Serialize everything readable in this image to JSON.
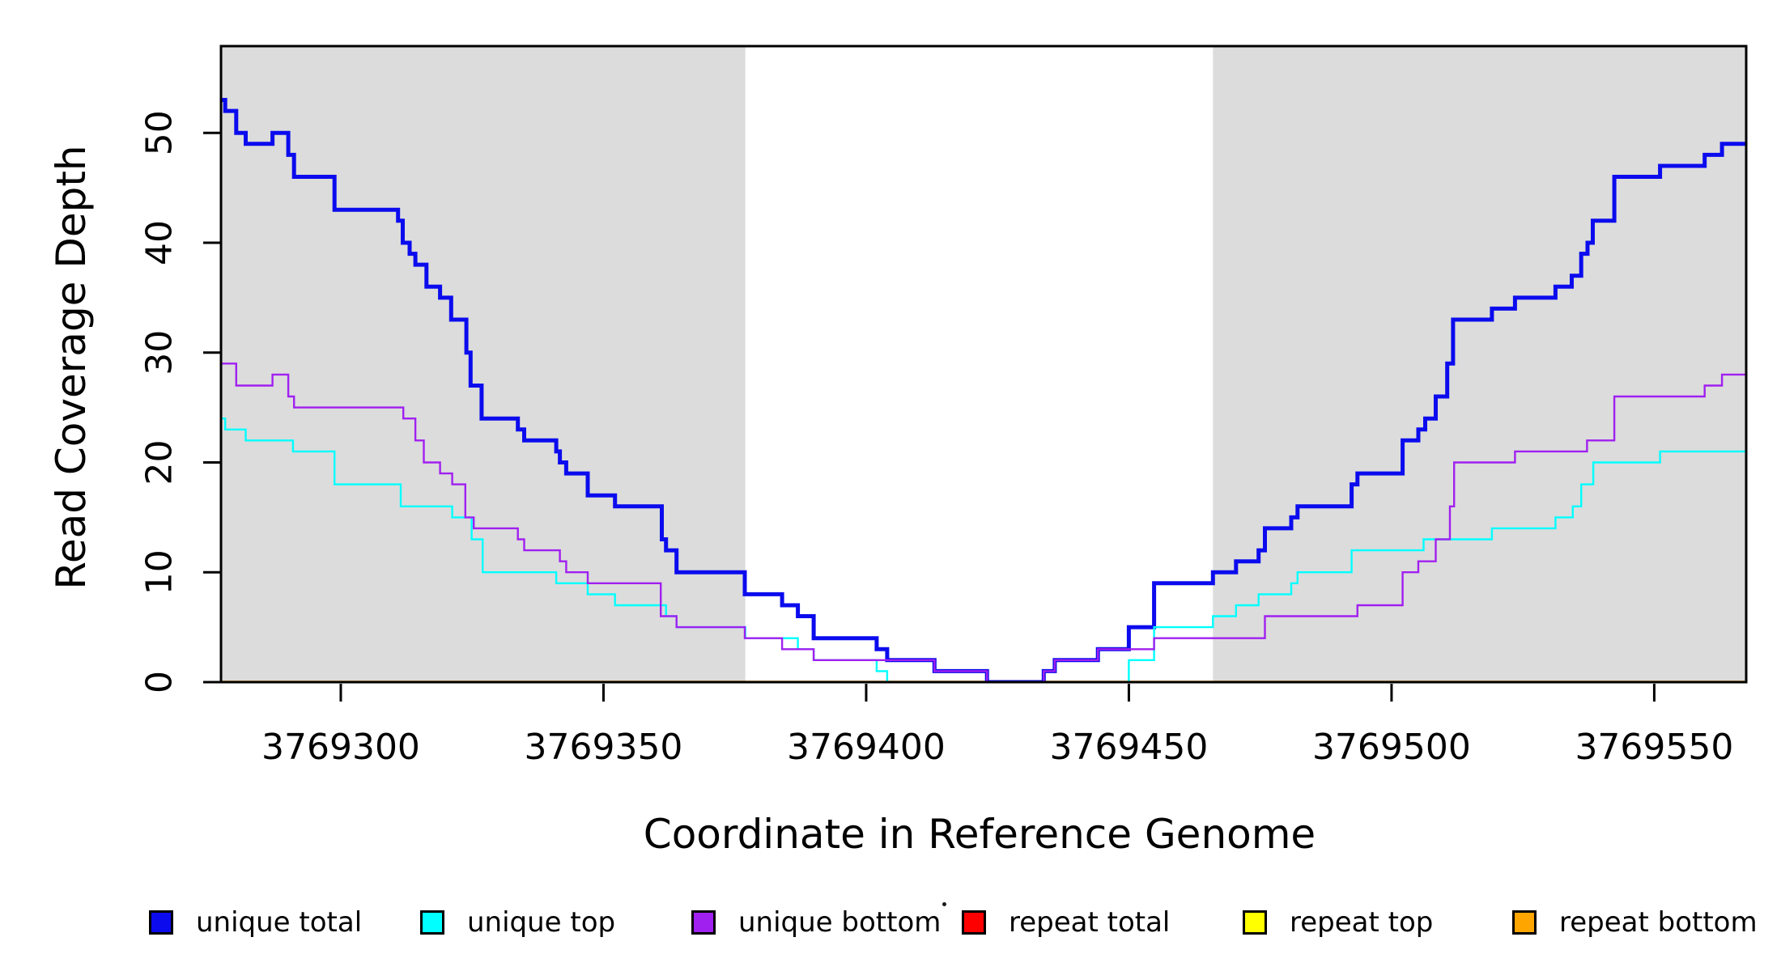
{
  "chart_data": {
    "type": "line",
    "subtype": "step-coverage",
    "title": "",
    "xlabel": "Coordinate in Reference Genome",
    "ylabel": "Read Coverage Depth",
    "x_ticks": [
      3769300,
      3769350,
      3769400,
      3769450,
      3769500,
      3769550
    ],
    "y_ticks": [
      0,
      10,
      20,
      30,
      40,
      50
    ],
    "xlim": [
      3769277.2,
      3769567.5
    ],
    "ylim": [
      0,
      57.9
    ],
    "grid": false,
    "background_color": "#ffffff",
    "shade_color": "#dcdcdc",
    "shaded_regions": [
      {
        "x0": 3769277.2,
        "x1": 3769377.0
      },
      {
        "x0": 3769466.0,
        "x1": 3769567.5
      }
    ],
    "series": [
      {
        "name": "repeat total",
        "color": "#ff0000",
        "line_width": 2.2,
        "steps": [
          [
            3769277.2,
            0
          ]
        ]
      },
      {
        "name": "repeat top",
        "color": "#ffff00",
        "line_width": 2.2,
        "steps": [
          [
            3769277.2,
            0
          ]
        ]
      },
      {
        "name": "repeat bottom",
        "color": "#ffa500",
        "line_width": 3.4,
        "steps": [
          [
            3769277.2,
            0
          ]
        ]
      },
      {
        "name": "unique total",
        "color": "#0b0bee",
        "line_width": 5,
        "steps": [
          [
            3769277.2,
            53
          ],
          [
            3769278,
            52
          ],
          [
            3769280.1,
            50
          ],
          [
            3769281.9,
            49
          ],
          [
            3769287,
            50
          ],
          [
            3769290,
            48
          ],
          [
            3769291.1,
            46
          ],
          [
            3769298.8,
            43
          ],
          [
            3769310.9,
            42
          ],
          [
            3769311.8,
            40
          ],
          [
            3769313.1,
            39
          ],
          [
            3769314.2,
            38
          ],
          [
            3769316.3,
            36
          ],
          [
            3769318.9,
            35
          ],
          [
            3769321,
            33
          ],
          [
            3769323.9,
            30
          ],
          [
            3769324.7,
            27
          ],
          [
            3769326.8,
            24
          ],
          [
            3769333.7,
            23
          ],
          [
            3769334.9,
            22
          ],
          [
            3769341,
            21
          ],
          [
            3769341.7,
            20
          ],
          [
            3769342.9,
            19
          ],
          [
            3769347,
            17
          ],
          [
            3769352.2,
            16
          ],
          [
            3769361.1,
            13
          ],
          [
            3769361.9,
            12
          ],
          [
            3769363.9,
            10
          ],
          [
            3769376.9,
            8
          ],
          [
            3769384,
            7
          ],
          [
            3769387,
            6
          ],
          [
            3769390,
            4
          ],
          [
            3769402,
            3
          ],
          [
            3769404,
            2
          ],
          [
            3769413,
            1
          ],
          [
            3769423,
            0
          ],
          [
            3769433.8,
            1
          ],
          [
            3769435.9,
            2
          ],
          [
            3769444.1,
            3
          ],
          [
            3769450,
            5
          ],
          [
            3769454.8,
            9
          ],
          [
            3769466,
            10
          ],
          [
            3769470.4,
            11
          ],
          [
            3769474.7,
            12
          ],
          [
            3769475.9,
            14
          ],
          [
            3769480.9,
            15
          ],
          [
            3769482.1,
            16
          ],
          [
            3769492.4,
            18
          ],
          [
            3769493.5,
            19
          ],
          [
            3769502.1,
            22
          ],
          [
            3769505.1,
            23
          ],
          [
            3769506.4,
            24
          ],
          [
            3769508.4,
            26
          ],
          [
            3769510.6,
            29
          ],
          [
            3769511.7,
            33
          ],
          [
            3769519.1,
            34
          ],
          [
            3769523.5,
            35
          ],
          [
            3769531.2,
            36
          ],
          [
            3769534.3,
            37
          ],
          [
            3769536.1,
            39
          ],
          [
            3769537.3,
            40
          ],
          [
            3769538.3,
            42
          ],
          [
            3769542.4,
            46
          ],
          [
            3769551.1,
            47
          ],
          [
            3769559.6,
            48
          ],
          [
            3769562.9,
            49
          ]
        ]
      },
      {
        "name": "unique top",
        "color": "#00ffff",
        "line_width": 2.4,
        "steps": [
          [
            3769277.2,
            24
          ],
          [
            3769278,
            23
          ],
          [
            3769281.9,
            22
          ],
          [
            3769290.9,
            21
          ],
          [
            3769298.8,
            18
          ],
          [
            3769311.4,
            16
          ],
          [
            3769321.2,
            15
          ],
          [
            3769324.9,
            13
          ],
          [
            3769327,
            10
          ],
          [
            3769341,
            9
          ],
          [
            3769347,
            8
          ],
          [
            3769352.2,
            7
          ],
          [
            3769361.9,
            6
          ],
          [
            3769363.9,
            5
          ],
          [
            3769377,
            4
          ],
          [
            3769387,
            3
          ],
          [
            3769390,
            2
          ],
          [
            3769402,
            1
          ],
          [
            3769404,
            0
          ],
          [
            3769450,
            2
          ],
          [
            3769454.8,
            5
          ],
          [
            3769466,
            6
          ],
          [
            3769470.4,
            7
          ],
          [
            3769474.7,
            8
          ],
          [
            3769480.9,
            9
          ],
          [
            3769482.1,
            10
          ],
          [
            3769492.4,
            12
          ],
          [
            3769506.1,
            13
          ],
          [
            3769519.1,
            14
          ],
          [
            3769531.2,
            15
          ],
          [
            3769534.5,
            16
          ],
          [
            3769536.1,
            18
          ],
          [
            3769538.4,
            20
          ],
          [
            3769551.1,
            21
          ]
        ]
      },
      {
        "name": "unique bottom",
        "color": "#a020f0",
        "line_width": 2.4,
        "steps": [
          [
            3769277.2,
            29
          ],
          [
            3769280.1,
            27
          ],
          [
            3769287,
            28
          ],
          [
            3769290,
            26
          ],
          [
            3769291.1,
            25
          ],
          [
            3769311.9,
            24
          ],
          [
            3769314.2,
            22
          ],
          [
            3769315.8,
            20
          ],
          [
            3769318.9,
            19
          ],
          [
            3769321.2,
            18
          ],
          [
            3769323.7,
            15
          ],
          [
            3769325.3,
            14
          ],
          [
            3769333.7,
            13
          ],
          [
            3769334.9,
            12
          ],
          [
            3769341.7,
            11
          ],
          [
            3769342.9,
            10
          ],
          [
            3769347,
            9
          ],
          [
            3769360.9,
            6
          ],
          [
            3769363.9,
            5
          ],
          [
            3769376.9,
            4
          ],
          [
            3769384,
            3
          ],
          [
            3769390,
            2
          ],
          [
            3769413,
            1
          ],
          [
            3769423,
            0
          ],
          [
            3769433.8,
            1
          ],
          [
            3769435.9,
            2
          ],
          [
            3769444.1,
            3
          ],
          [
            3769454.8,
            4
          ],
          [
            3769475.9,
            6
          ],
          [
            3769493.5,
            7
          ],
          [
            3769502.1,
            10
          ],
          [
            3769505.1,
            11
          ],
          [
            3769508.4,
            13
          ],
          [
            3769511.1,
            16
          ],
          [
            3769511.9,
            20
          ],
          [
            3769523.5,
            21
          ],
          [
            3769537.2,
            22
          ],
          [
            3769542.4,
            26
          ],
          [
            3769559.6,
            27
          ],
          [
            3769562.9,
            28
          ]
        ]
      }
    ],
    "legend": {
      "position": "bottom",
      "entries": [
        {
          "label": "unique total",
          "color": "#0b0bee"
        },
        {
          "label": "unique top",
          "color": "#00ffff"
        },
        {
          "label": "unique bottom",
          "color": "#a020f0"
        },
        {
          "label": "repeat total",
          "color": "#ff0000"
        },
        {
          "label": "repeat top",
          "color": "#ffff00"
        },
        {
          "label": "repeat bottom",
          "color": "#ffa500"
        }
      ],
      "stray_dot": true
    }
  }
}
